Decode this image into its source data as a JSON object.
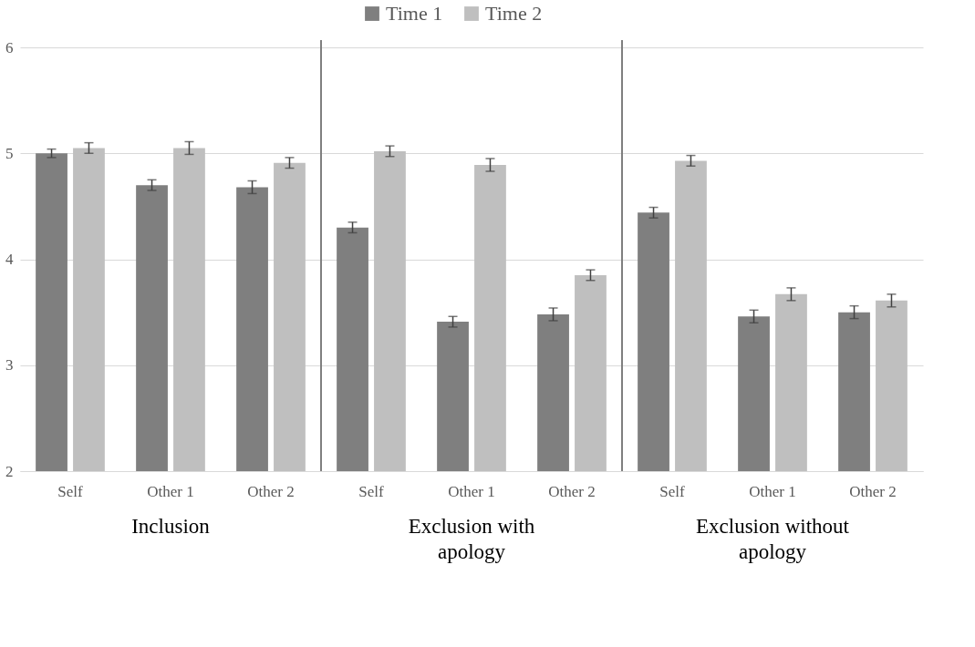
{
  "chart_data": {
    "type": "bar",
    "categories": [
      "Self",
      "Other 1",
      "Other 2",
      "Self",
      "Other 1",
      "Other 2",
      "Self",
      "Other 1",
      "Other 2"
    ],
    "series": [
      {
        "name": "Time 1",
        "color": "#7f7f7f",
        "values": [
          5.0,
          4.7,
          4.68,
          4.3,
          3.41,
          3.48,
          4.44,
          3.46,
          3.5
        ],
        "errors": [
          0.04,
          0.05,
          0.06,
          0.05,
          0.05,
          0.06,
          0.05,
          0.06,
          0.06
        ]
      },
      {
        "name": "Time 2",
        "color": "#bfbfbf",
        "values": [
          5.05,
          5.05,
          4.91,
          5.02,
          4.89,
          3.85,
          4.93,
          3.67,
          3.61
        ],
        "errors": [
          0.05,
          0.06,
          0.05,
          0.05,
          0.06,
          0.05,
          0.05,
          0.06,
          0.06
        ]
      }
    ],
    "ylim": [
      2,
      6
    ],
    "yticks": [
      2,
      3,
      4,
      5,
      6
    ],
    "grid": "y",
    "legend": "top",
    "annotations": [
      "Inclusion",
      "Exclusion with apology",
      "Exclusion without apology"
    ]
  }
}
